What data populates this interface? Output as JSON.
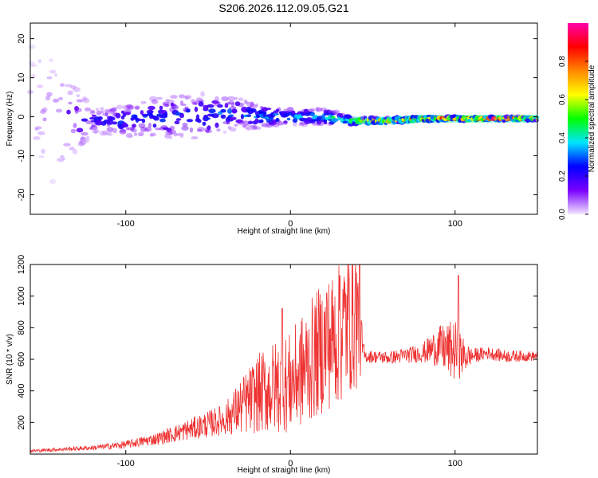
{
  "chart_data": [
    {
      "type": "heatmap",
      "title": "S206.2026.112.09.05.G21",
      "xlabel": "Height of straight line (km)",
      "ylabel": "Frequency (Hz)",
      "xlim": [
        -158,
        150
      ],
      "ylim": [
        -25,
        24
      ],
      "xticks": [
        -100,
        0,
        100
      ],
      "yticks": [
        -20,
        -10,
        0,
        10,
        20
      ],
      "colorbar": {
        "label": "Normalized spectral amplitude",
        "range": [
          0,
          1
        ],
        "ticks": [
          "0.0",
          "0.2",
          "0.4",
          "0.6",
          "0.8"
        ],
        "colormap": [
          "#f2e6ff",
          "#7a00ff",
          "#0000ff",
          "#00e5ff",
          "#00ff00",
          "#ffff00",
          "#ff8800",
          "#ff0000",
          "#ff00aa"
        ]
      },
      "profile": {
        "x": [
          -158,
          -120,
          -100,
          -80,
          -60,
          -40,
          -20,
          0,
          20,
          35,
          40,
          60,
          80,
          100,
          120,
          150
        ],
        "center_hz": [
          0,
          -1,
          -1,
          0,
          0,
          1,
          0,
          0,
          0,
          -1,
          -1,
          -1,
          -0.5,
          -0.5,
          -0.5,
          -0.5
        ],
        "halfwidth_hz": [
          24,
          3,
          4,
          5,
          6,
          5,
          3,
          2,
          2,
          1.5,
          0.8,
          0.7,
          0.6,
          0.5,
          0.5,
          0.5
        ],
        "peak_amplitude": [
          0.05,
          0.25,
          0.3,
          0.3,
          0.3,
          0.3,
          0.35,
          0.4,
          0.4,
          0.5,
          0.7,
          0.8,
          0.9,
          0.9,
          0.9,
          0.85
        ]
      }
    },
    {
      "type": "line",
      "xlabel": "Height of straight line (km)",
      "ylabel": "SNR (10 * v/v)",
      "xlim": [
        -158,
        150
      ],
      "ylim": [
        0,
        1200
      ],
      "xticks": [
        -100,
        0,
        100
      ],
      "yticks": [
        200,
        400,
        600,
        800,
        1000,
        1200
      ],
      "series": [
        {
          "name": "SNR",
          "color": "#ee3333",
          "x": [
            -158,
            -140,
            -120,
            -100,
            -80,
            -60,
            -40,
            -30,
            -20,
            -10,
            0,
            10,
            20,
            30,
            35,
            40,
            43,
            45,
            60,
            80,
            90,
            100,
            105,
            110,
            120,
            130,
            150
          ],
          "y": [
            20,
            30,
            40,
            60,
            100,
            160,
            220,
            300,
            380,
            420,
            450,
            560,
            680,
            760,
            850,
            900,
            700,
            620,
            610,
            640,
            680,
            650,
            620,
            620,
            640,
            620,
            620
          ],
          "amplitude": [
            10,
            12,
            15,
            25,
            40,
            70,
            100,
            180,
            250,
            300,
            320,
            380,
            420,
            450,
            480,
            500,
            200,
            40,
            40,
            60,
            130,
            200,
            120,
            50,
            40,
            40,
            30
          ],
          "peaks": [
            {
              "x": 42,
              "y": 1200
            },
            {
              "x": 30,
              "y": 1130
            },
            {
              "x": 102,
              "y": 1130
            },
            {
              "x": 22,
              "y": 1020
            },
            {
              "x": -5,
              "y": 920
            }
          ]
        }
      ]
    }
  ]
}
